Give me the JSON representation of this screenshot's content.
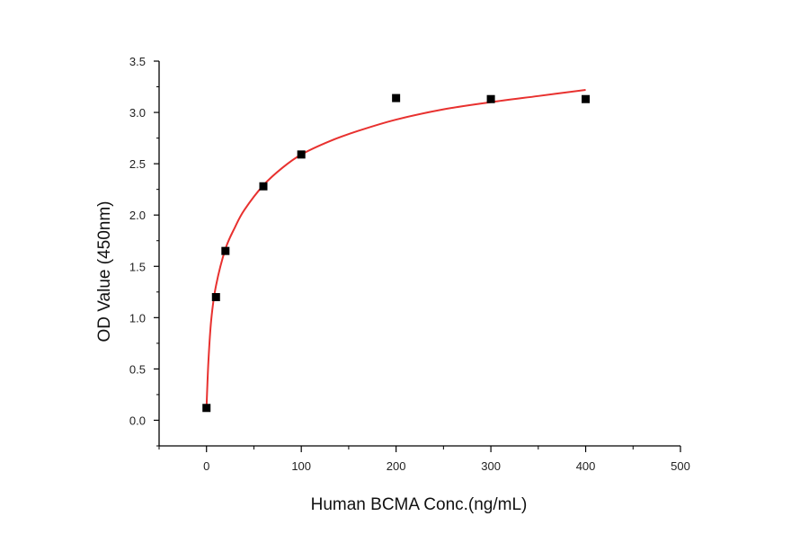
{
  "chart_data": {
    "type": "scatter",
    "xlabel": "Human BCMA Conc.(ng/mL)",
    "ylabel": "OD Value (450nm)",
    "xlim": [
      -50,
      500
    ],
    "ylim": [
      -0.25,
      3.5
    ],
    "x_ticks": [
      0,
      100,
      200,
      300,
      400,
      500
    ],
    "x_tick_labels": [
      "0",
      "100",
      "200",
      "300",
      "400",
      "500"
    ],
    "y_ticks": [
      0.0,
      0.5,
      1.0,
      1.5,
      2.0,
      2.5,
      3.0,
      3.5
    ],
    "y_tick_labels": [
      "0.0",
      "0.5",
      "1.0",
      "1.5",
      "2.0",
      "2.5",
      "3.0",
      "3.5"
    ],
    "grid": false,
    "legend": "none",
    "series": [
      {
        "kind": "points",
        "marker": "square",
        "color": "#000000",
        "x": [
          0,
          10,
          20,
          60,
          100,
          200,
          300,
          400
        ],
        "y": [
          0.12,
          1.2,
          1.65,
          2.28,
          2.59,
          3.14,
          3.13,
          3.13
        ]
      },
      {
        "kind": "fit-line",
        "color": "#e8312f",
        "x": [
          0,
          2,
          5,
          10,
          20,
          30,
          40,
          60,
          80,
          100,
          130,
          160,
          200,
          250,
          300,
          350,
          400
        ],
        "y": [
          0.12,
          0.57,
          0.98,
          1.31,
          1.67,
          1.88,
          2.05,
          2.29,
          2.46,
          2.59,
          2.72,
          2.82,
          2.93,
          3.03,
          3.1,
          3.16,
          3.22
        ]
      }
    ]
  }
}
